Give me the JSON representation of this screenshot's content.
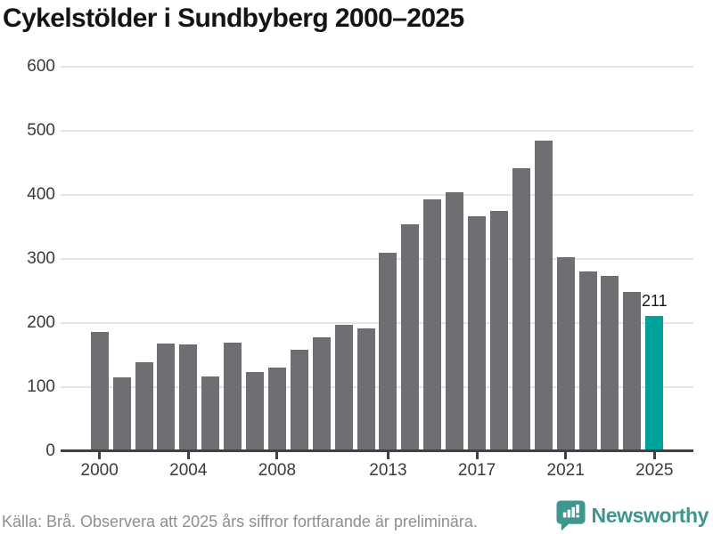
{
  "title": "Cykelstölder i Sundbyberg 2000–2025",
  "footer": {
    "source_note": "Källa: Brå. Observera att 2025 års siffror fortfarande är preliminära."
  },
  "branding": {
    "name": "Newsworthy",
    "logo_icon": "newsworthy-speech-bubble-bar-chart-icon"
  },
  "colors": {
    "bar": "#6e6e73",
    "highlight": "#00a39b",
    "gridline": "#e5e5e5",
    "axis": "#404045",
    "axis_text": "#3a3a3e",
    "title_text": "#141414",
    "footer_text": "#8d8d92",
    "value_text": "#1a1a1a",
    "brand": "#3e968f"
  },
  "chart_data": {
    "type": "bar",
    "title": "Cykelstölder i Sundbyberg 2000–2025",
    "categories": [
      2000,
      2001,
      2002,
      2003,
      2004,
      2005,
      2006,
      2007,
      2008,
      2009,
      2010,
      2011,
      2012,
      2013,
      2014,
      2015,
      2016,
      2017,
      2018,
      2019,
      2020,
      2021,
      2022,
      2023,
      2024,
      2025
    ],
    "values": [
      186,
      115,
      139,
      168,
      166,
      116,
      170,
      124,
      131,
      159,
      178,
      197,
      192,
      310,
      354,
      393,
      404,
      366,
      375,
      442,
      485,
      303,
      281,
      274,
      249,
      211
    ],
    "highlighted_category": 2025,
    "highlighted_value_label": "211",
    "x_tick_labels": [
      "2000",
      "2004",
      "2008",
      "2013",
      "2017",
      "2021",
      "2025"
    ],
    "y_ticks": [
      0,
      100,
      200,
      300,
      400,
      500,
      600
    ],
    "ylim": [
      0,
      600
    ],
    "grid": "horizontal",
    "legend": "none",
    "xlabel": "",
    "ylabel": ""
  }
}
